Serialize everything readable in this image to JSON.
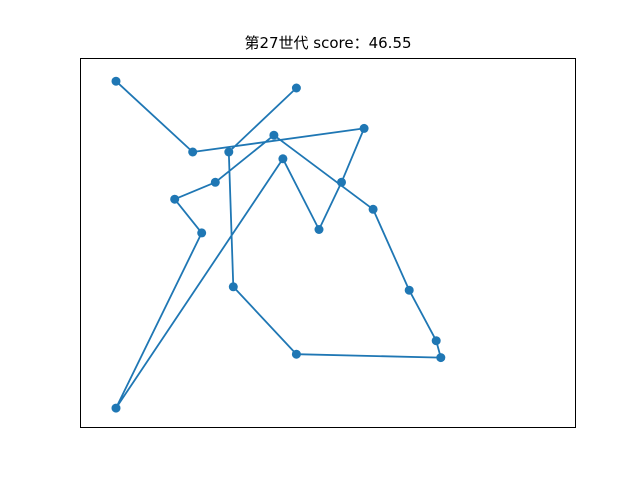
{
  "chart_data": {
    "type": "line",
    "title": "第27世代 score：46.55",
    "xlabel": "",
    "ylabel": "",
    "axes_visible": false,
    "grid": false,
    "legend": "none",
    "color": "#1f77b4",
    "marker": "circle",
    "xlim": [
      0,
      100
    ],
    "ylim": [
      0,
      100
    ],
    "points": [
      {
        "x": 43,
        "y": 96
      },
      {
        "x": 28,
        "y": 77
      },
      {
        "x": 29,
        "y": 37
      },
      {
        "x": 43,
        "y": 17
      },
      {
        "x": 75,
        "y": 16
      },
      {
        "x": 74,
        "y": 21
      },
      {
        "x": 68,
        "y": 36
      },
      {
        "x": 60,
        "y": 60
      },
      {
        "x": 38,
        "y": 82
      },
      {
        "x": 25,
        "y": 68
      },
      {
        "x": 16,
        "y": 63
      },
      {
        "x": 22,
        "y": 53
      },
      {
        "x": 3,
        "y": 1
      },
      {
        "x": 40,
        "y": 75
      },
      {
        "x": 48,
        "y": 54
      },
      {
        "x": 53,
        "y": 68
      },
      {
        "x": 58,
        "y": 84
      },
      {
        "x": 20,
        "y": 77
      },
      {
        "x": 3,
        "y": 98
      }
    ]
  }
}
